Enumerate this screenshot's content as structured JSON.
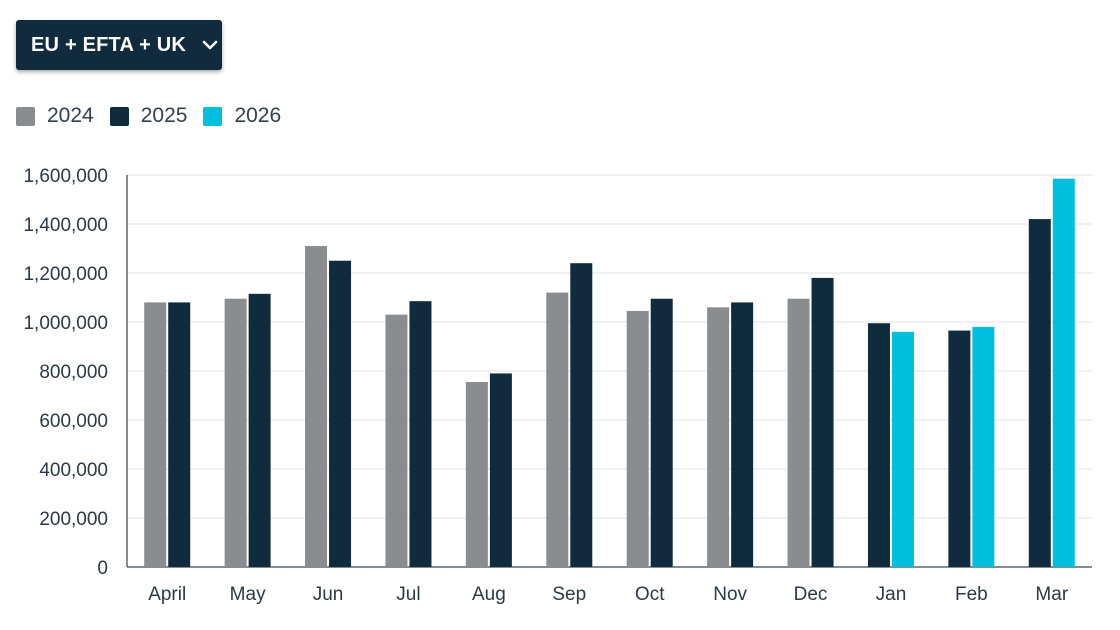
{
  "selector": {
    "label": "EU + EFTA + UK",
    "icon": "chevron-down-icon"
  },
  "colors": {
    "2024": "#8a8d8f",
    "2025": "#0f2b3d",
    "2026": "#00c0dd",
    "selector_bg": "#0f2b3d",
    "grid": "#e3e3e3"
  },
  "chart_data": {
    "type": "bar",
    "categories": [
      "April",
      "May",
      "Jun",
      "Jul",
      "Aug",
      "Sep",
      "Oct",
      "Nov",
      "Dec",
      "Jan",
      "Feb",
      "Mar"
    ],
    "series": [
      {
        "name": "2024",
        "values": [
          1080000,
          1095000,
          1310000,
          1030000,
          755000,
          1120000,
          1045000,
          1060000,
          1095000,
          null,
          null,
          null
        ]
      },
      {
        "name": "2025",
        "values": [
          1080000,
          1115000,
          1250000,
          1085000,
          790000,
          1240000,
          1095000,
          1080000,
          1180000,
          995000,
          965000,
          1420000
        ]
      },
      {
        "name": "2026",
        "values": [
          null,
          null,
          null,
          null,
          null,
          null,
          null,
          null,
          null,
          960000,
          980000,
          1585000
        ]
      }
    ],
    "ylim": [
      0,
      1600000
    ],
    "yticks": [
      0,
      200000,
      400000,
      600000,
      800000,
      1000000,
      1200000,
      1400000,
      1600000
    ],
    "ytick_labels": [
      "0",
      "200,000",
      "400,000",
      "600,000",
      "800,000",
      "1,000,000",
      "1,200,000",
      "1,400,000",
      "1,600,000"
    ],
    "grid": true,
    "legend_position": "top-left",
    "title": "",
    "xlabel": "",
    "ylabel": ""
  }
}
